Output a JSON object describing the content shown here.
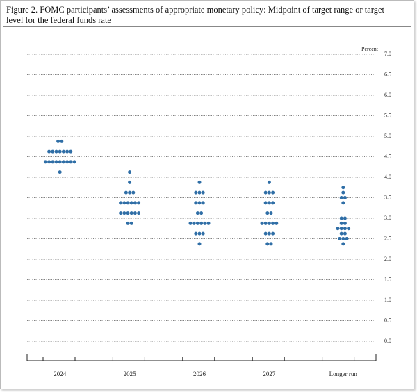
{
  "chart_data": {
    "type": "dot",
    "title": "Figure 2.  FOMC participants’ assessments of appropriate monetary policy:  Midpoint of target range or target level for the federal funds rate",
    "y_label": "Percent",
    "color": "#2f6ea6",
    "ylim": [
      0,
      7
    ],
    "yticks": [
      {
        "value": 0,
        "label": "0.0"
      },
      0.5,
      {
        "value": 1,
        "label": "1.0"
      },
      1.5,
      {
        "value": 2,
        "label": "2.0"
      },
      2.5,
      {
        "value": 3,
        "label": "3.0"
      },
      3.5,
      {
        "value": 4,
        "label": "4.0"
      },
      4.5,
      {
        "value": 5,
        "label": "5.0"
      },
      5.5,
      {
        "value": 6,
        "label": "6.0"
      },
      6.5,
      {
        "value": 7,
        "label": "7.0"
      }
    ],
    "grid": true,
    "columns": [
      {
        "name": "2024",
        "dots": [
          {
            "value": 4.875,
            "count": 2
          },
          {
            "value": 4.625,
            "count": 7
          },
          {
            "value": 4.375,
            "count": 9
          },
          {
            "value": 4.125,
            "count": 1
          }
        ]
      },
      {
        "name": "2025",
        "dots": [
          {
            "value": 4.125,
            "count": 1
          },
          {
            "value": 3.875,
            "count": 1
          },
          {
            "value": 3.625,
            "count": 3
          },
          {
            "value": 3.375,
            "count": 6
          },
          {
            "value": 3.125,
            "count": 6
          },
          {
            "value": 2.875,
            "count": 2
          }
        ]
      },
      {
        "name": "2026",
        "dots": [
          {
            "value": 3.875,
            "count": 1
          },
          {
            "value": 3.625,
            "count": 3
          },
          {
            "value": 3.375,
            "count": 3
          },
          {
            "value": 3.125,
            "count": 2
          },
          {
            "value": 2.875,
            "count": 6
          },
          {
            "value": 2.625,
            "count": 3
          },
          {
            "value": 2.375,
            "count": 1
          }
        ]
      },
      {
        "name": "2027",
        "dots": [
          {
            "value": 3.875,
            "count": 1
          },
          {
            "value": 3.625,
            "count": 3
          },
          {
            "value": 3.375,
            "count": 3
          },
          {
            "value": 3.125,
            "count": 2
          },
          {
            "value": 2.875,
            "count": 5
          },
          {
            "value": 2.625,
            "count": 3
          },
          {
            "value": 2.375,
            "count": 2
          }
        ]
      },
      {
        "name": "Longer run",
        "dots": [
          {
            "value": 3.75,
            "count": 1
          },
          {
            "value": 3.625,
            "count": 1
          },
          {
            "value": 3.5,
            "count": 2
          },
          {
            "value": 3.375,
            "count": 1
          },
          {
            "value": 3.0,
            "count": 2
          },
          {
            "value": 2.875,
            "count": 2
          },
          {
            "value": 2.75,
            "count": 4
          },
          {
            "value": 2.625,
            "count": 2
          },
          {
            "value": 2.5,
            "count": 3
          },
          {
            "value": 2.375,
            "count": 1
          }
        ]
      }
    ]
  }
}
